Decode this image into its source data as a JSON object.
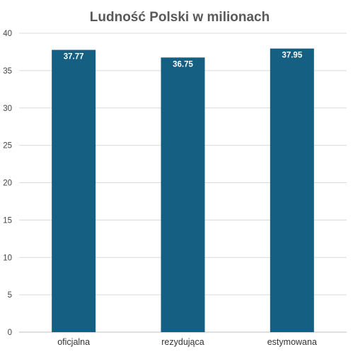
{
  "chart_data": {
    "type": "bar",
    "title": "Ludność Polski w milionach",
    "categories": [
      "oficjalna",
      "rezydująca",
      "estymowana"
    ],
    "values": [
      37.77,
      36.75,
      37.95
    ],
    "value_labels": [
      "37.77",
      "36.75",
      "37.95"
    ],
    "xlabel": "",
    "ylabel": "",
    "ylim": [
      0,
      40
    ],
    "yticks": [
      0,
      5,
      10,
      15,
      20,
      25,
      30,
      35,
      40
    ],
    "grid": true,
    "legend": "none",
    "bar_color": "#155f82"
  }
}
